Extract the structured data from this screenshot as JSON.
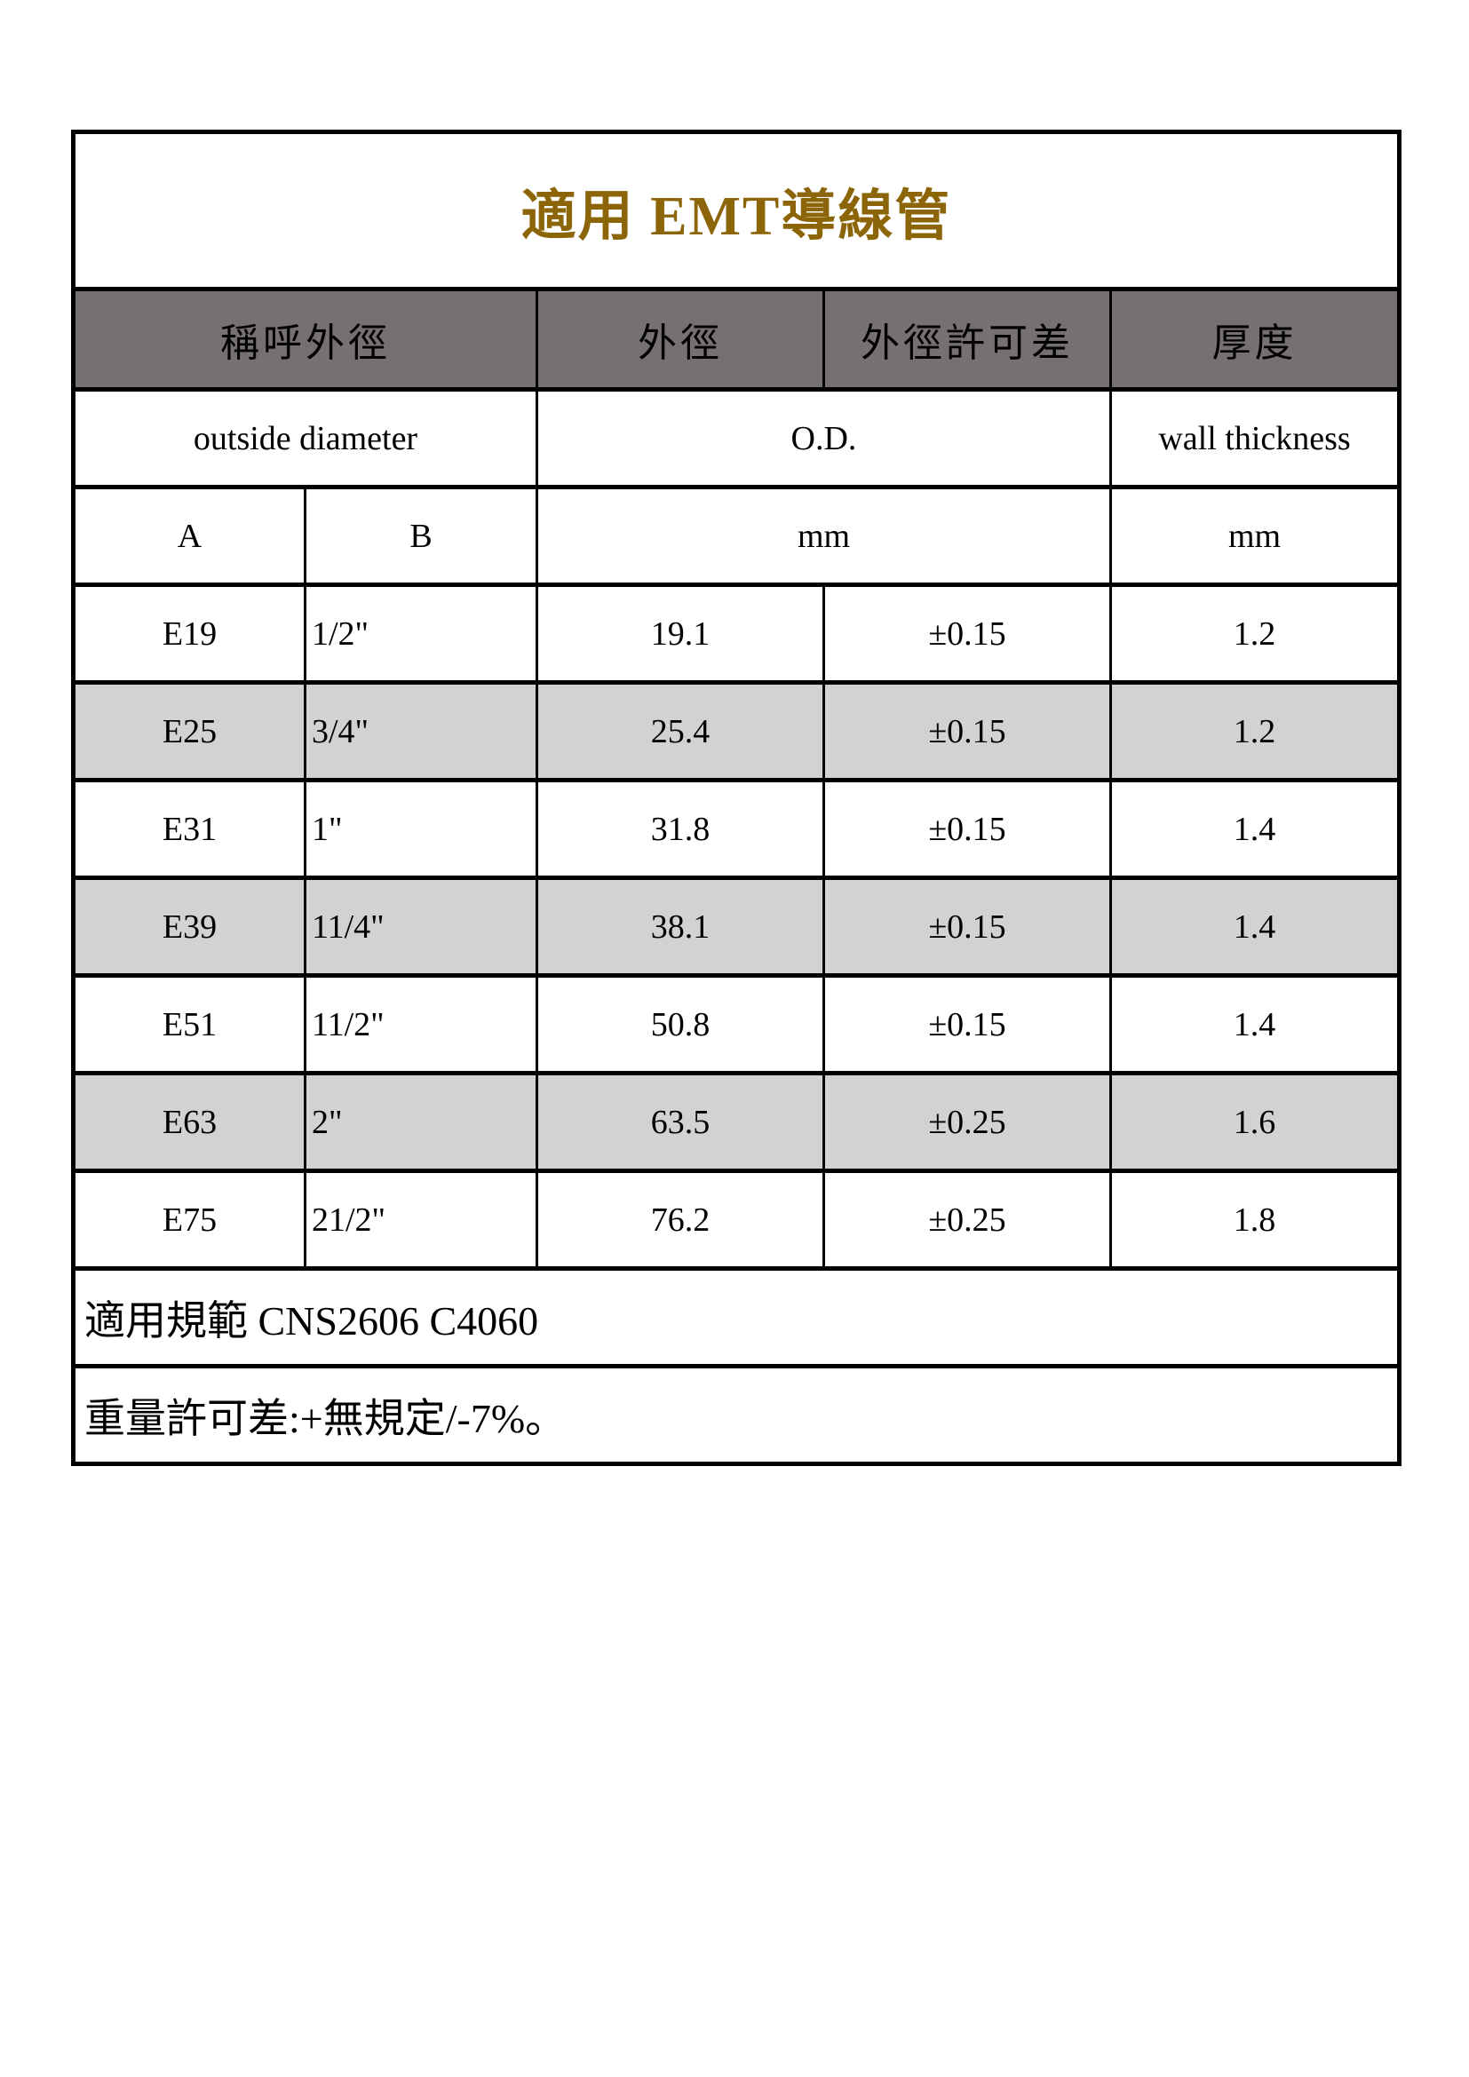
{
  "title": "適用  EMT導線管",
  "header": {
    "nominal": "稱呼外徑",
    "od": "外徑",
    "od_tolerance": "外徑許可差",
    "thickness": "厚度"
  },
  "subheader": {
    "nominal": "outside diameter",
    "od": "O.D.",
    "thickness": "wall thickness"
  },
  "units": {
    "a": "A",
    "b": "B",
    "od_unit": "mm",
    "thickness_unit": "mm"
  },
  "rows": [
    {
      "a": "E19",
      "b": "1/2\"",
      "od": "19.1",
      "tol": "±0.15",
      "t": "1.2"
    },
    {
      "a": "E25",
      "b": "3/4\"",
      "od": "25.4",
      "tol": "±0.15",
      "t": "1.2"
    },
    {
      "a": "E31",
      "b": "1\"",
      "od": "31.8",
      "tol": "±0.15",
      "t": "1.4"
    },
    {
      "a": "E39",
      "b": "11/4\"",
      "od": "38.1",
      "tol": "±0.15",
      "t": "1.4"
    },
    {
      "a": "E51",
      "b": "11/2\"",
      "od": "50.8",
      "tol": "±0.15",
      "t": "1.4"
    },
    {
      "a": "E63",
      "b": "2\"",
      "od": "63.5",
      "tol": "±0.25",
      "t": "1.6"
    },
    {
      "a": "E75",
      "b": "21/2\"",
      "od": "76.2",
      "tol": "±0.25",
      "t": "1.8"
    }
  ],
  "notes": {
    "standard": "適用規範 CNS2606 C4060",
    "weight_tolerance": "重量許可差:+無規定/-7%。"
  },
  "colors": {
    "title": "#8b6508",
    "header_bg": "#767170",
    "stripe_bg": "#d3d1d1"
  }
}
